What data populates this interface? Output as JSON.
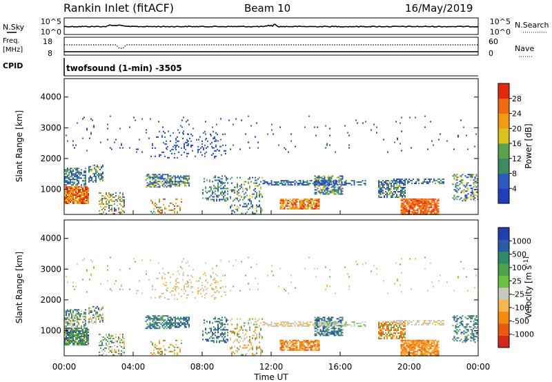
{
  "header": {
    "station": "Rankin Inlet (fitACF)",
    "beam": "Beam 10",
    "date": "16/May/2019"
  },
  "noise_panel": {
    "left_label": "N.Sky",
    "right_label": "N.Search",
    "tick_top": "10^5",
    "tick_bottom": "10^0"
  },
  "freq_panel": {
    "left_label_1": "Freq.",
    "left_label_2": "[MHz]",
    "right_label": "Nave",
    "left_ticks": [
      "18",
      "8"
    ],
    "right_ticks": [
      "60",
      "0"
    ],
    "cpid_label": "CPID",
    "cpid_value": "twofsound (1-min) -3505"
  },
  "colors": {
    "power": [
      "#1f3fbf",
      "#2f5bbf",
      "#3b8a60",
      "#5aa24c",
      "#d9c21c",
      "#f39a14",
      "#f06a10",
      "#e12a10"
    ],
    "velocity": [
      "#d4281a",
      "#e85a10",
      "#f58a0c",
      "#f5b84a",
      "#c8c8c0",
      "#6cc040",
      "#4fa04a",
      "#2f8a6a",
      "#2a5aa8",
      "#2040b0"
    ]
  },
  "chart_data": [
    {
      "type": "heatmap",
      "name": "power",
      "ylabel": "Slant Range [km]",
      "yticks": [
        1000,
        2000,
        3000,
        4000
      ],
      "ylim": [
        180,
        4600
      ],
      "colorbar_label": "Power [dB]",
      "colorbar_ticks": [
        "28",
        "24",
        "20",
        "16",
        "12",
        "8",
        "4"
      ]
    },
    {
      "type": "heatmap",
      "name": "velocity",
      "ylabel": "Slant Range [km]",
      "yticks": [
        1000,
        2000,
        3000,
        4000
      ],
      "ylim": [
        180,
        4600
      ],
      "colorbar_label": "Velocity [m s^-1]",
      "colorbar_ticks": [
        "1000",
        "500",
        "100",
        "25",
        "-25",
        "-100",
        "-500",
        "-1000"
      ]
    }
  ],
  "x_axis": {
    "label": "Time UT",
    "ticks": [
      "00:00",
      "04:00",
      "08:00",
      "12:00",
      "16:00",
      "20:00",
      "00:00"
    ]
  }
}
